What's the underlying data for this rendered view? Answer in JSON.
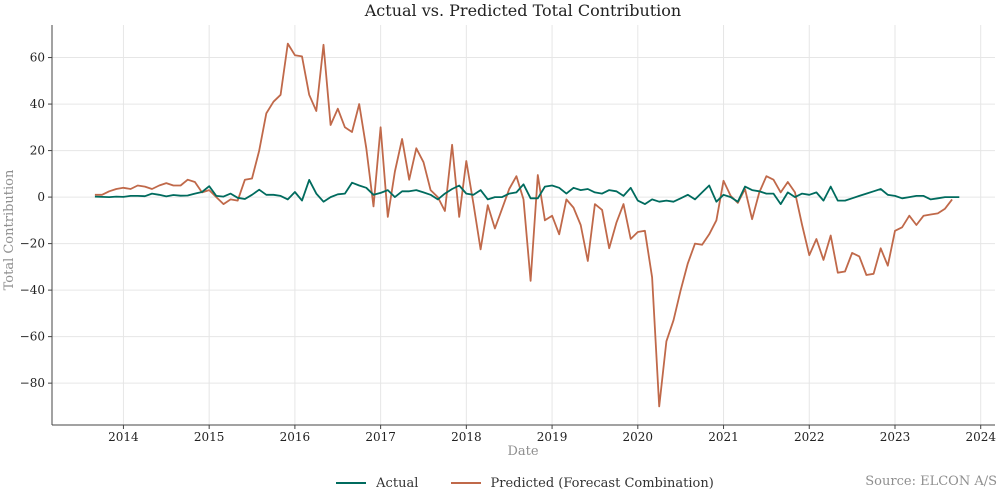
{
  "chart_data": {
    "type": "line",
    "title": "Actual vs. Predicted Total Contribution",
    "xlabel": "Date",
    "ylabel": "Total Contribution",
    "source": "Source: ELCON A/S",
    "x_start": "2013-09",
    "x_ticks": [
      "2014",
      "2015",
      "2016",
      "2017",
      "2018",
      "2019",
      "2020",
      "2021",
      "2022",
      "2023",
      "2024"
    ],
    "y_ticks": [
      60,
      40,
      20,
      0,
      -20,
      -40,
      -60,
      -80
    ],
    "xlim": [
      "2013-03",
      "2024-03"
    ],
    "ylim": [
      -98,
      74
    ],
    "grid": true,
    "legend_position": "bottom",
    "colors": {
      "actual": "#006b5e",
      "predicted": "#c0694a",
      "grid": "#e6e6e6",
      "axis": "#444444"
    },
    "series": [
      {
        "name": "Actual",
        "values": [
          0.2,
          0.1,
          0.0,
          0.2,
          0.1,
          0.5,
          0.5,
          0.4,
          1.5,
          1.0,
          0.3,
          0.9,
          0.6,
          0.7,
          1.5,
          2.2,
          4.7,
          0.5,
          0.2,
          1.5,
          -0.3,
          -0.8,
          1.0,
          3.2,
          1.0,
          1.0,
          0.5,
          -1.0,
          2.2,
          -1.5,
          7.4,
          1.5,
          -2.0,
          0.0,
          1.2,
          1.5,
          6.2,
          5.0,
          4.0,
          1.0,
          1.8,
          3.0,
          0.0,
          2.5,
          2.5,
          3.0,
          2.0,
          1.0,
          -1.0,
          1.5,
          3.5,
          5.0,
          1.5,
          1.0,
          3.0,
          -1.0,
          0.0,
          0.0,
          1.5,
          2.0,
          5.5,
          -0.5,
          -0.5,
          4.5,
          5.0,
          4.0,
          1.5,
          4.0,
          3.0,
          3.5,
          2.0,
          1.5,
          3.0,
          2.5,
          0.5,
          4.0,
          -1.5,
          -3.0,
          -1.0,
          -2.0,
          -1.5,
          -2.0,
          -0.5,
          1.0,
          -1.0,
          2.0,
          5.0,
          -2.0,
          1.0,
          0.0,
          -2.0,
          4.5,
          3.0,
          2.5,
          1.5,
          1.5,
          -3.0,
          2.0,
          0.0,
          1.5,
          1.0,
          2.0,
          -1.5,
          4.5,
          -1.5,
          -1.5,
          -0.5,
          0.5,
          1.5,
          2.5,
          3.5,
          1.0,
          0.5,
          -0.5,
          0.0,
          0.5,
          0.5,
          -1.0,
          -0.5,
          0.0,
          0.0,
          0.0
        ]
      },
      {
        "name": "Predicted (Forecast Combination)",
        "values": [
          1.0,
          1.0,
          2.5,
          3.5,
          4.0,
          3.5,
          5.0,
          4.5,
          3.5,
          5.0,
          6.0,
          5.0,
          5.0,
          7.5,
          6.5,
          2.0,
          3.0,
          0.0,
          -3.0,
          -1.0,
          -1.5,
          7.5,
          8.0,
          20.0,
          36.0,
          41.0,
          44.0,
          66.0,
          61.0,
          60.5,
          44.0,
          37.0,
          65.5,
          31.0,
          38.0,
          30.0,
          28.0,
          40.0,
          21.0,
          -4.0,
          30.0,
          -8.5,
          11.0,
          25.0,
          7.5,
          21.0,
          15.0,
          3.0,
          0.0,
          -6.0,
          22.5,
          -8.5,
          15.5,
          -3.0,
          -22.5,
          -3.5,
          -13.5,
          -5.0,
          3.5,
          9.0,
          -1.0,
          -36.0,
          9.5,
          -10.0,
          -8.0,
          -16.0,
          -1.0,
          -4.5,
          -12.0,
          -27.5,
          -3.0,
          -5.5,
          -22.0,
          -11.0,
          -3.0,
          -18.0,
          -15.0,
          -14.5,
          -34.5,
          -90.0,
          -62.0,
          -53.0,
          -40.0,
          -28.5,
          -20.0,
          -20.5,
          -16.0,
          -10.0,
          7.0,
          0.5,
          -2.5,
          3.5,
          -9.5,
          2.0,
          9.0,
          7.5,
          2.0,
          6.5,
          2.0,
          -12.0,
          -25.0,
          -18.0,
          -27.0,
          -16.5,
          -32.5,
          -32.0,
          -24.0,
          -25.5,
          -33.5,
          -33.0,
          -22.0,
          -29.5,
          -14.5,
          -13.0,
          -8.0,
          -12.0,
          -8.0,
          -7.5,
          -7.0,
          -5.0,
          -1.0
        ]
      }
    ]
  }
}
